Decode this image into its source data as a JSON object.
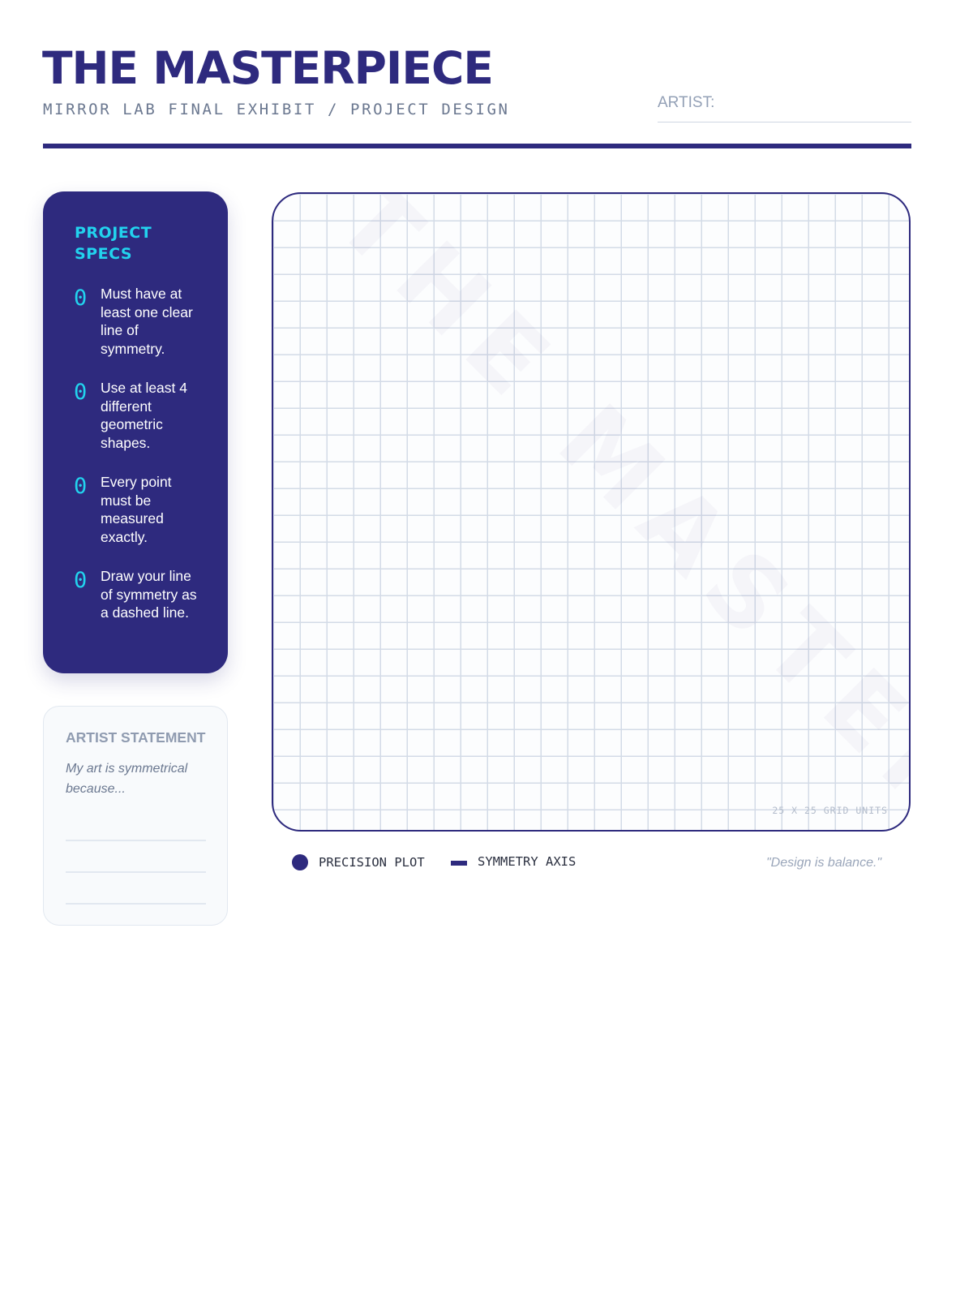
{
  "header": {
    "title": "THE MASTERPIECE",
    "subtitle": "MIRROR LAB FINAL EXHIBIT / PROJECT DESIGN",
    "artist_label": "ARTIST:",
    "artist_value": ""
  },
  "specs": {
    "title": "PROJECT SPECS",
    "items": [
      {
        "check": "0",
        "text": "Must have at least one clear line of symmetry."
      },
      {
        "check": "0",
        "text": "Use at least 4 different geometric shapes."
      },
      {
        "check": "0",
        "text": "Every point must be measured exactly."
      },
      {
        "check": "0",
        "text": "Draw your line of symmetry as a dashed line."
      }
    ]
  },
  "statement": {
    "title": "ARTIST STATEMENT",
    "prompt": "My art is symmetrical because..."
  },
  "grid": {
    "watermark": "THE MASTERPIECE",
    "units_label": "25 X 25 GRID UNITS",
    "columns": 25,
    "rows": 25
  },
  "legend": {
    "plot_label": "PRECISION PLOT",
    "plot_icon": "filled-circle",
    "axis_label": "SYMMETRY AXIS",
    "axis_icon": "dashed-line",
    "quote": "\"Design is balance.\""
  },
  "colors": {
    "primary": "#2e2a7e",
    "accent": "#22d3ee",
    "grid": "#d3dbe7"
  }
}
